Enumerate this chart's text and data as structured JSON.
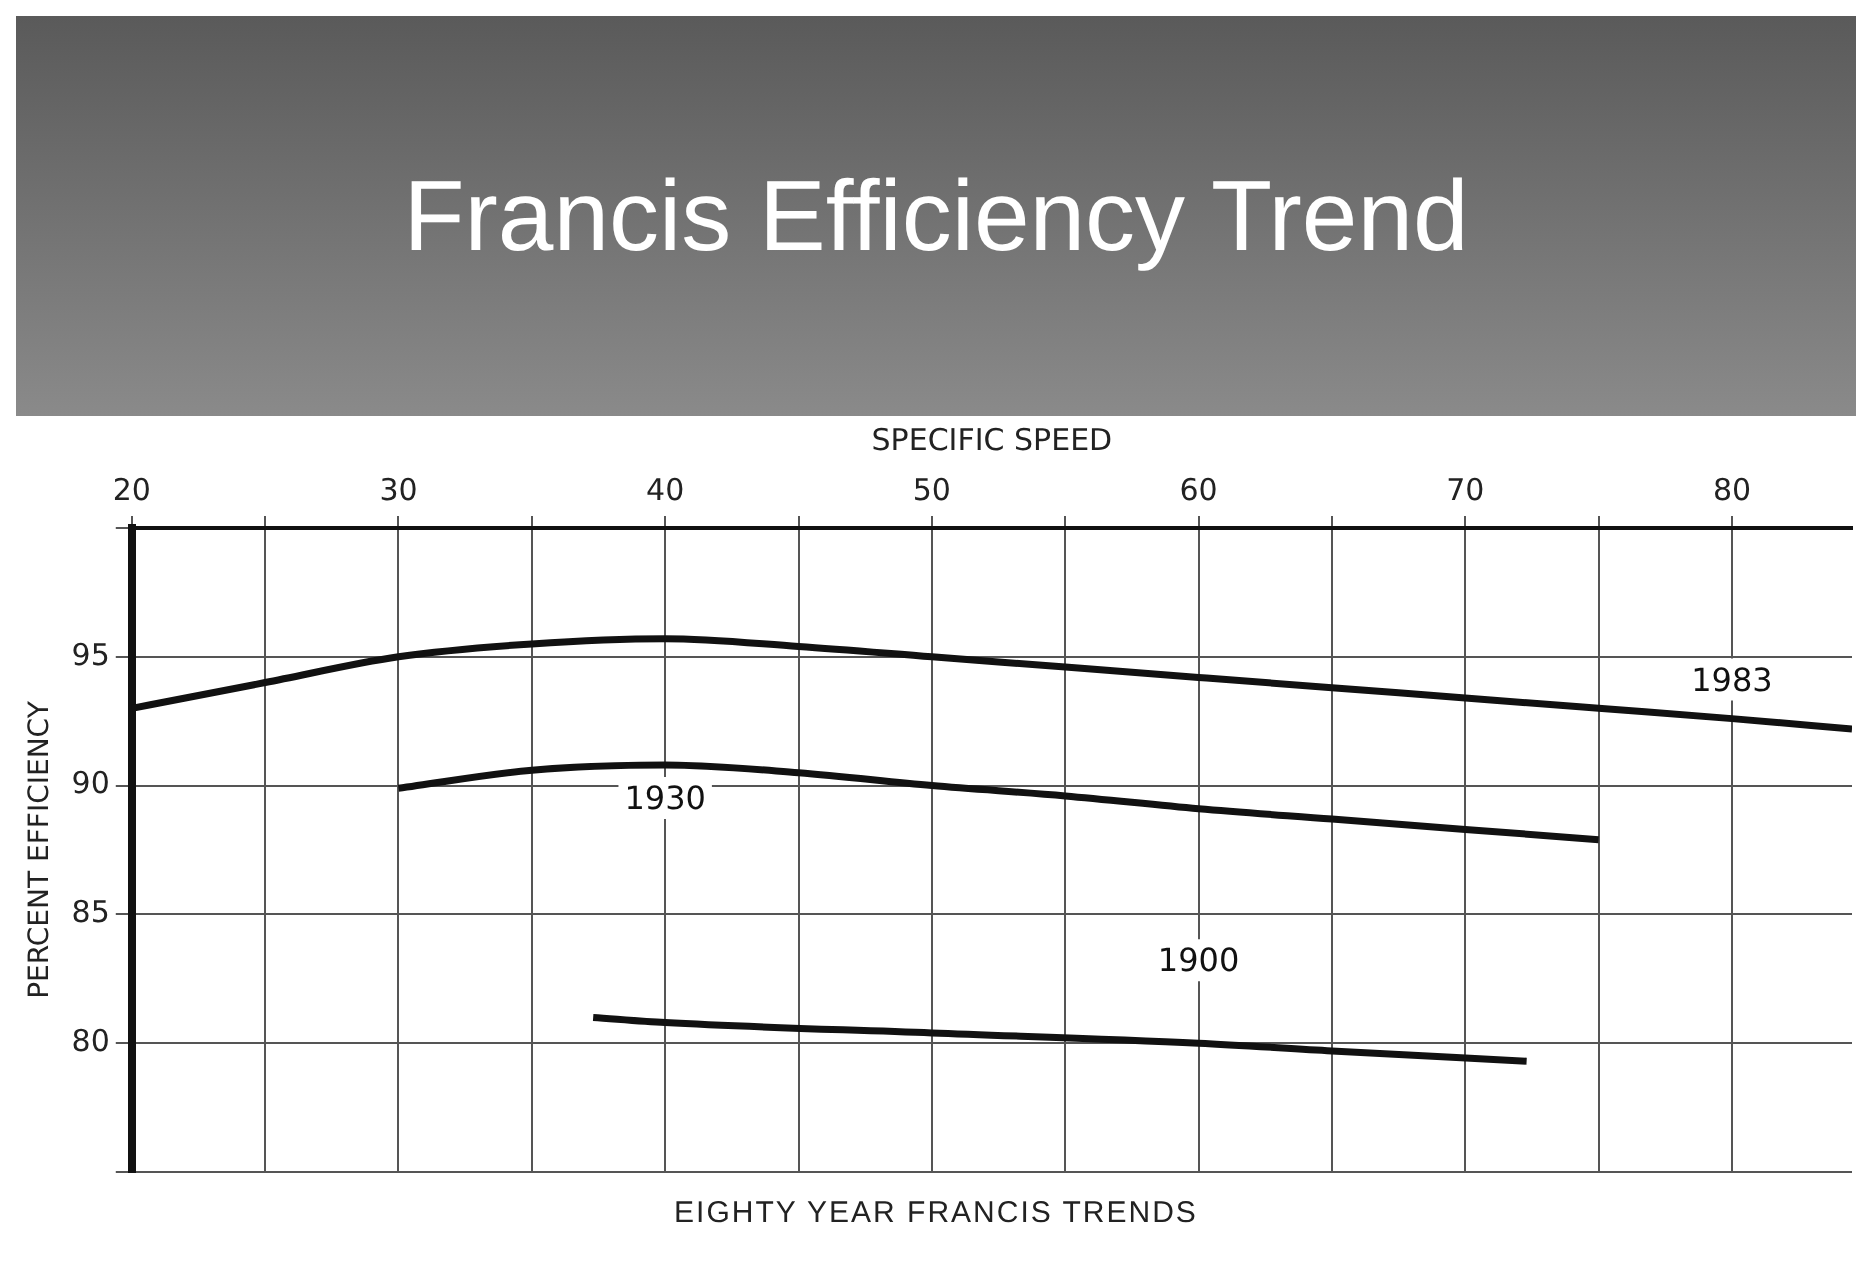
{
  "chart_data": {
    "type": "line",
    "title": "Francis Efficiency Trend",
    "xlabel": "SPECIFIC SPEED",
    "ylabel": "PERCENT EFFICIENCY",
    "annotations": [
      "EIGHTY YEAR FRANCIS TRENDS"
    ],
    "xlim": [
      20,
      84.5
    ],
    "xticks": [
      20,
      {
        "value": 25,
        "label": null
      },
      30,
      {
        "value": 35,
        "label": null
      },
      40,
      {
        "value": 45,
        "label": null
      },
      50,
      {
        "value": 55,
        "label": null
      },
      60,
      {
        "value": 65,
        "label": null
      },
      70,
      {
        "value": 75,
        "label": null
      },
      80
    ],
    "ylim": [
      75,
      100
    ],
    "yticks": [
      {
        "value": 75,
        "label": null
      },
      80,
      85,
      90,
      95,
      {
        "value": 100,
        "label": null
      }
    ],
    "grid": true,
    "legend": false,
    "marker": "none",
    "line_style": "solid",
    "series": [
      {
        "name": "1983",
        "color": "#111111",
        "x": [
          20,
          25,
          30,
          35,
          40,
          45,
          50,
          55,
          60,
          65,
          70,
          75,
          80,
          84.5
        ],
        "values": [
          93.0,
          94.0,
          95.0,
          95.5,
          95.7,
          95.4,
          95.0,
          94.6,
          94.2,
          93.8,
          93.4,
          93.0,
          92.6,
          92.2
        ]
      },
      {
        "name": "1930",
        "color": "#111111",
        "x": [
          30,
          35,
          40,
          45,
          50,
          55,
          60,
          65,
          70,
          75
        ],
        "values": [
          89.9,
          90.6,
          90.8,
          90.5,
          90.0,
          89.6,
          89.1,
          88.7,
          88.3,
          87.9
        ]
      },
      {
        "name": "1900",
        "color": "#111111",
        "x": [
          37.3,
          40,
          50,
          60,
          65,
          72.3
        ],
        "values": [
          81.0,
          80.8,
          80.4,
          80.0,
          79.7,
          79.3
        ]
      }
    ]
  }
}
